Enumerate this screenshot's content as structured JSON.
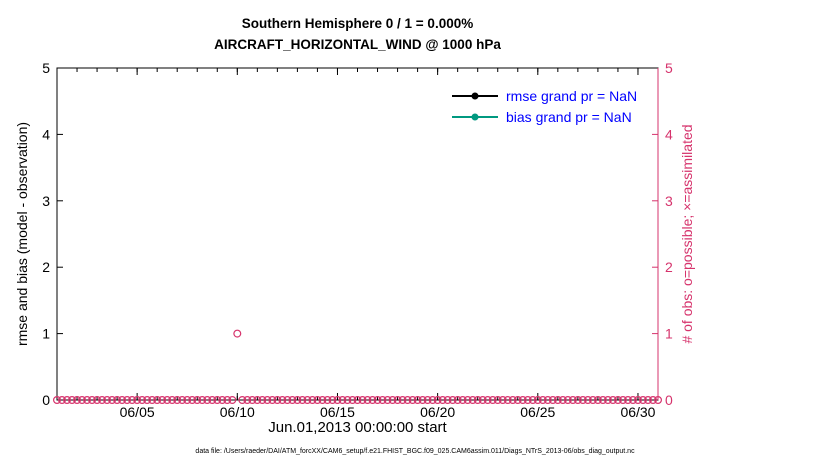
{
  "title": {
    "line1": "Southern Hemisphere 0 / 1 = 0.000%",
    "line2": "AIRCRAFT_HORIZONTAL_WIND @ 1000 hPa"
  },
  "axes": {
    "left": {
      "label": "rmse and bias (model - observation)",
      "ticks": [
        0,
        1,
        2,
        3,
        4,
        5
      ],
      "range": [
        0,
        5
      ],
      "color": "#000000"
    },
    "right": {
      "label": "# of obs: o=possible; ×=assimilated",
      "ticks": [
        0,
        1,
        2,
        3,
        4,
        5
      ],
      "range": [
        0,
        5
      ],
      "color": "#d6336c"
    },
    "x": {
      "label": "Jun.01,2013 00:00:00 start",
      "tick_days": [
        4,
        9,
        14,
        19,
        24,
        29
      ],
      "tick_labels": [
        "06/05",
        "06/10",
        "06/15",
        "06/20",
        "06/25",
        "06/30"
      ],
      "minor_tick_every_days": 1
    }
  },
  "legend": {
    "text_color": "#0000ff",
    "items": [
      {
        "label": "rmse grand pr = NaN",
        "color": "#000000"
      },
      {
        "label": "bias grand pr = NaN",
        "color": "#009980"
      }
    ]
  },
  "chart_data": {
    "type": "scatter",
    "title": "Southern Hemisphere 0 / 1 = 0.000% — AIRCRAFT_HORIZONTAL_WIND @ 1000 hPa",
    "xlabel": "Jun.01,2013 00:00:00 start",
    "ylabel": "rmse and bias (model - observation)",
    "ylabel_right": "# of obs: o=possible; ×=assimilated",
    "x_range_days": [
      0,
      30
    ],
    "ylim": [
      0,
      5
    ],
    "grid": false,
    "legend_position": "upper-right-inside",
    "series": [
      {
        "name": "rmse",
        "legend": "rmse grand pr = NaN",
        "value": "NaN",
        "plotted": false
      },
      {
        "name": "bias",
        "legend": "bias grand pr = NaN",
        "value": "NaN",
        "plotted": false
      },
      {
        "name": "possible observations",
        "axis": "right",
        "marker": "o",
        "color": "#d6336c",
        "x_start": 0,
        "x_end": 30,
        "x_step": 0.25,
        "baseline_value": 0,
        "exceptions": [
          {
            "x_day": 9,
            "value": 1
          }
        ]
      }
    ]
  },
  "footer": "data file: /Users/raeder/DAI/ATM_forcXX/CAM6_setup/f.e21.FHIST_BGC.f09_025.CAM6assim.011/Diags_NTrS_2013-06/obs_diag_output.nc"
}
